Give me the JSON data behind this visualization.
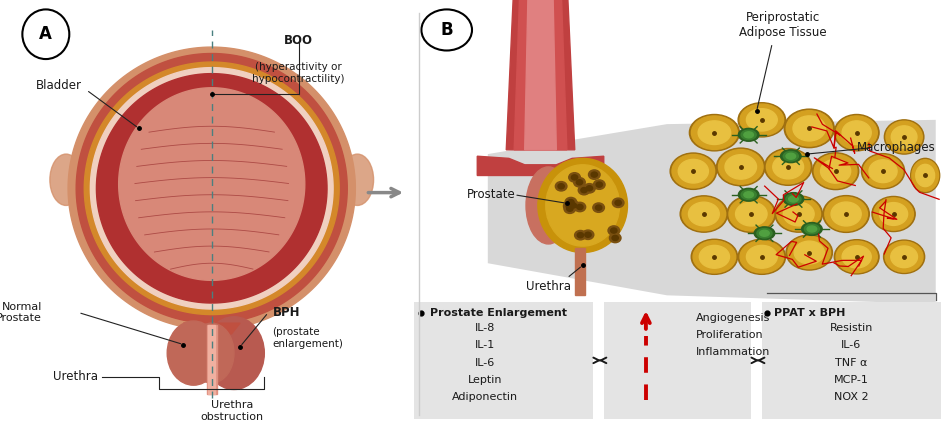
{
  "panel_A_label": "A",
  "panel_B_label": "B",
  "bg_color": "#ffffff",
  "gray_box_color": "#e4e4e4",
  "box1_title": "Prostate Enlargement",
  "box1_items": [
    "IL-8",
    "IL-1",
    "IL-6",
    "Leptin",
    "Adiponectin"
  ],
  "box2_items": [
    "Angiogenesis",
    "Proliferation",
    "Inflammation"
  ],
  "box3_title": "PPAT x BPH",
  "box3_items": [
    "Resistin",
    "IL-6",
    "TNF α",
    "MCP-1",
    "NOX 2"
  ],
  "arrow_color": "#cc0000",
  "text_color": "#1a1a1a"
}
